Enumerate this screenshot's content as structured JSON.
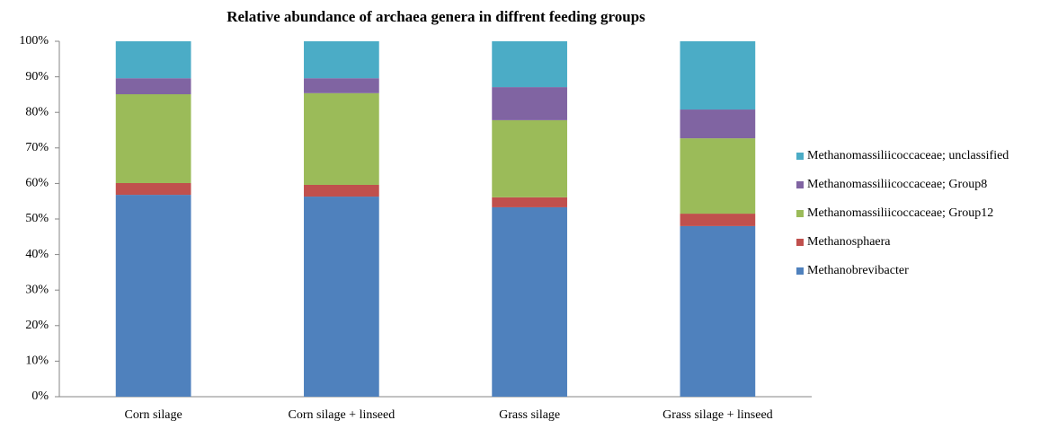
{
  "chart_data": {
    "type": "stacked_bar",
    "title": "Relative abundance of archaea genera in diffrent feeding groups",
    "categories": [
      "Corn silage",
      "Corn silage + linseed",
      "Grass silage",
      "Grass silage + linseed"
    ],
    "series": [
      {
        "name": "Methanobrevibacter",
        "color": "#4f81bd",
        "values": [
          56.8,
          56.3,
          53.3,
          48.0
        ]
      },
      {
        "name": "Methanosphaera",
        "color": "#c0504d",
        "values": [
          3.3,
          3.3,
          2.8,
          3.5
        ]
      },
      {
        "name": "Methanomassiliicoccaceae; Group12",
        "color": "#9bbb59",
        "values": [
          25.0,
          25.8,
          21.7,
          21.2
        ]
      },
      {
        "name": "Methanomassiliicoccaceae; Group8",
        "color": "#8064a2",
        "values": [
          4.5,
          4.2,
          9.3,
          8.1
        ]
      },
      {
        "name": "Methanomassiliicoccaceae; unclassified",
        "color": "#4bacc6",
        "values": [
          10.4,
          10.4,
          12.9,
          19.2
        ]
      }
    ],
    "ylim": [
      0,
      100
    ],
    "yticks": [
      {
        "value": 0,
        "label": "0%"
      },
      {
        "value": 10,
        "label": "10%"
      },
      {
        "value": 20,
        "label": "20%"
      },
      {
        "value": 30,
        "label": "30%"
      },
      {
        "value": 40,
        "label": "40%"
      },
      {
        "value": 50,
        "label": "50%"
      },
      {
        "value": 60,
        "label": "60%"
      },
      {
        "value": 70,
        "label": "70%"
      },
      {
        "value": 80,
        "label": "80%"
      },
      {
        "value": 90,
        "label": "90%"
      },
      {
        "value": 100,
        "label": "100%"
      }
    ],
    "legend": "right",
    "grid": false
  }
}
